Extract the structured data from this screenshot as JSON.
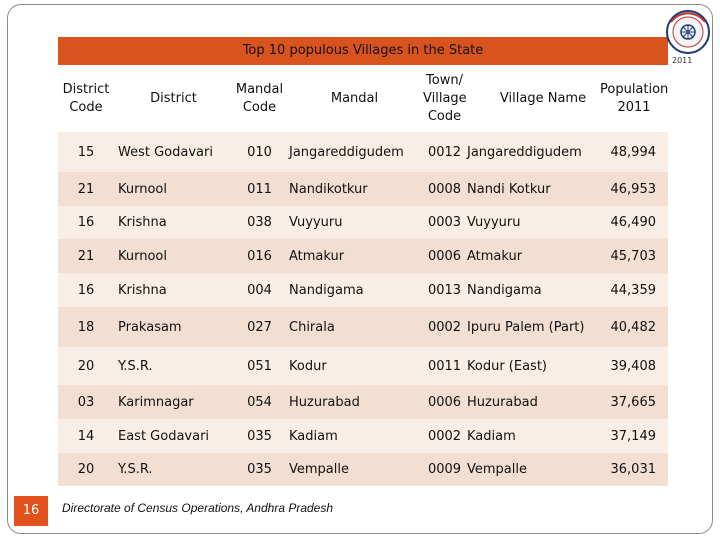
{
  "title": "Top 10 populous Villages in the State",
  "logo_year": "2011",
  "columns": [
    "District\nCode",
    "District",
    "Mandal\nCode",
    "Mandal",
    "Town/\nVillage\nCode",
    "Village Name",
    "Population\n2011"
  ],
  "rows": [
    [
      "15",
      "West Godavari",
      "010",
      "Jangareddigudem",
      "0012",
      "Jangareddigudem",
      "48,994"
    ],
    [
      "21",
      "Kurnool",
      "011",
      "Nandikotkur",
      "0008",
      "Nandi Kotkur",
      "46,953"
    ],
    [
      "16",
      "Krishna",
      "038",
      "Vuyyuru",
      "0003",
      "Vuyyuru",
      "46,490"
    ],
    [
      "21",
      "Kurnool",
      "016",
      "Atmakur",
      "0006",
      "Atmakur",
      "45,703"
    ],
    [
      "16",
      "Krishna",
      "004",
      "Nandigama",
      "0013",
      "Nandigama",
      "44,359"
    ],
    [
      "18",
      "Prakasam",
      "027",
      "Chirala",
      "0002",
      "Ipuru Palem (Part)",
      "40,482"
    ],
    [
      "20",
      "Y.S.R.",
      "051",
      "Kodur",
      "0011",
      "Kodur (East)",
      "39,408"
    ],
    [
      "03",
      "Karimnagar",
      "054",
      "Huzurabad",
      "0006",
      "Huzurabad",
      "37,665"
    ],
    [
      "14",
      "East Godavari",
      "035",
      "Kadiam",
      "0002",
      "Kadiam",
      "37,149"
    ],
    [
      "20",
      "Y.S.R.",
      "035",
      "Vempalle",
      "0009",
      "Vempalle",
      "36,031"
    ]
  ],
  "slide_number": "16",
  "footer": "Directorate of Census Operations, Andhra Pradesh",
  "colors": {
    "title_bar": "#d9531e",
    "row_light": "#f8eee6",
    "row_dark": "#f2dfd1",
    "slide_badge": "#e2521d"
  }
}
